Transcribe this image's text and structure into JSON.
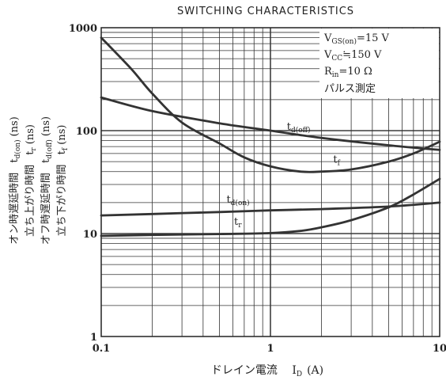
{
  "chart_data": {
    "type": "line",
    "title": "SWITCHING CHARACTERISTICS",
    "xlabel_main": "ドレイン電流",
    "xlabel_symbol": "I",
    "xlabel_sub": "D",
    "xlabel_unit": "(A)",
    "x_scale": "log",
    "y_scale": "log",
    "xlim": [
      0.1,
      10
    ],
    "ylim": [
      1,
      1000
    ],
    "grid": true,
    "x_ticks": [
      {
        "value": 0.1,
        "label": "0.1"
      },
      {
        "value": 1,
        "label": "1"
      },
      {
        "value": 10,
        "label": "10"
      }
    ],
    "y_ticks": [
      {
        "value": 1,
        "label": "1"
      },
      {
        "value": 10,
        "label": "10"
      },
      {
        "value": 100,
        "label": "100"
      },
      {
        "value": 1000,
        "label": "1000"
      }
    ],
    "ylabel_lines": [
      {
        "jp": "オン時遅延時間",
        "sym": "t",
        "sub": "d(on)",
        "unit": "(ns)"
      },
      {
        "jp": "立ち上がり時間",
        "sym": "t",
        "sub": "r",
        "unit": "(ns)"
      },
      {
        "jp": "オフ時遅延時間",
        "sym": "t",
        "sub": "d(off)",
        "unit": "(ns)"
      },
      {
        "jp": "立ち下がり時間",
        "sym": "t",
        "sub": "f",
        "unit": "(ns)"
      }
    ],
    "conditions": [
      {
        "main": "V",
        "sub": "GS(on)",
        "rest": "=15 V"
      },
      {
        "main": "V",
        "sub": "CC",
        "rest": "≒150 V"
      },
      {
        "main": "R",
        "sub": "in",
        "rest": "=10 Ω"
      },
      {
        "main": "パルス測定",
        "sub": "",
        "rest": ""
      }
    ],
    "series": [
      {
        "label_main": "t",
        "label_sub": "d(off)",
        "color": "#333333",
        "x": [
          0.1,
          0.2,
          0.5,
          1,
          2,
          5,
          10
        ],
        "y": [
          210,
          155,
          118,
          100,
          85,
          72,
          65
        ]
      },
      {
        "label_main": "t",
        "label_sub": "f",
        "color": "#333333",
        "x": [
          0.1,
          0.15,
          0.2,
          0.3,
          0.5,
          0.7,
          1,
          1.5,
          2,
          3,
          5,
          7,
          10
        ],
        "y": [
          800,
          400,
          230,
          120,
          75,
          55,
          45,
          40,
          40,
          42,
          50,
          60,
          78
        ]
      },
      {
        "label_main": "t",
        "label_sub": "d(on)",
        "color": "#333333",
        "x": [
          0.1,
          0.2,
          0.5,
          1,
          2,
          5,
          10
        ],
        "y": [
          15,
          15.5,
          16.2,
          16.8,
          17.3,
          18.3,
          20
        ]
      },
      {
        "label_main": "t",
        "label_sub": "r",
        "color": "#333333",
        "x": [
          0.1,
          0.2,
          0.5,
          1,
          1.5,
          2,
          3,
          5,
          7,
          10
        ],
        "y": [
          9.5,
          9.7,
          9.9,
          10.1,
          10.6,
          11.5,
          13.5,
          18,
          24,
          34
        ]
      }
    ]
  }
}
